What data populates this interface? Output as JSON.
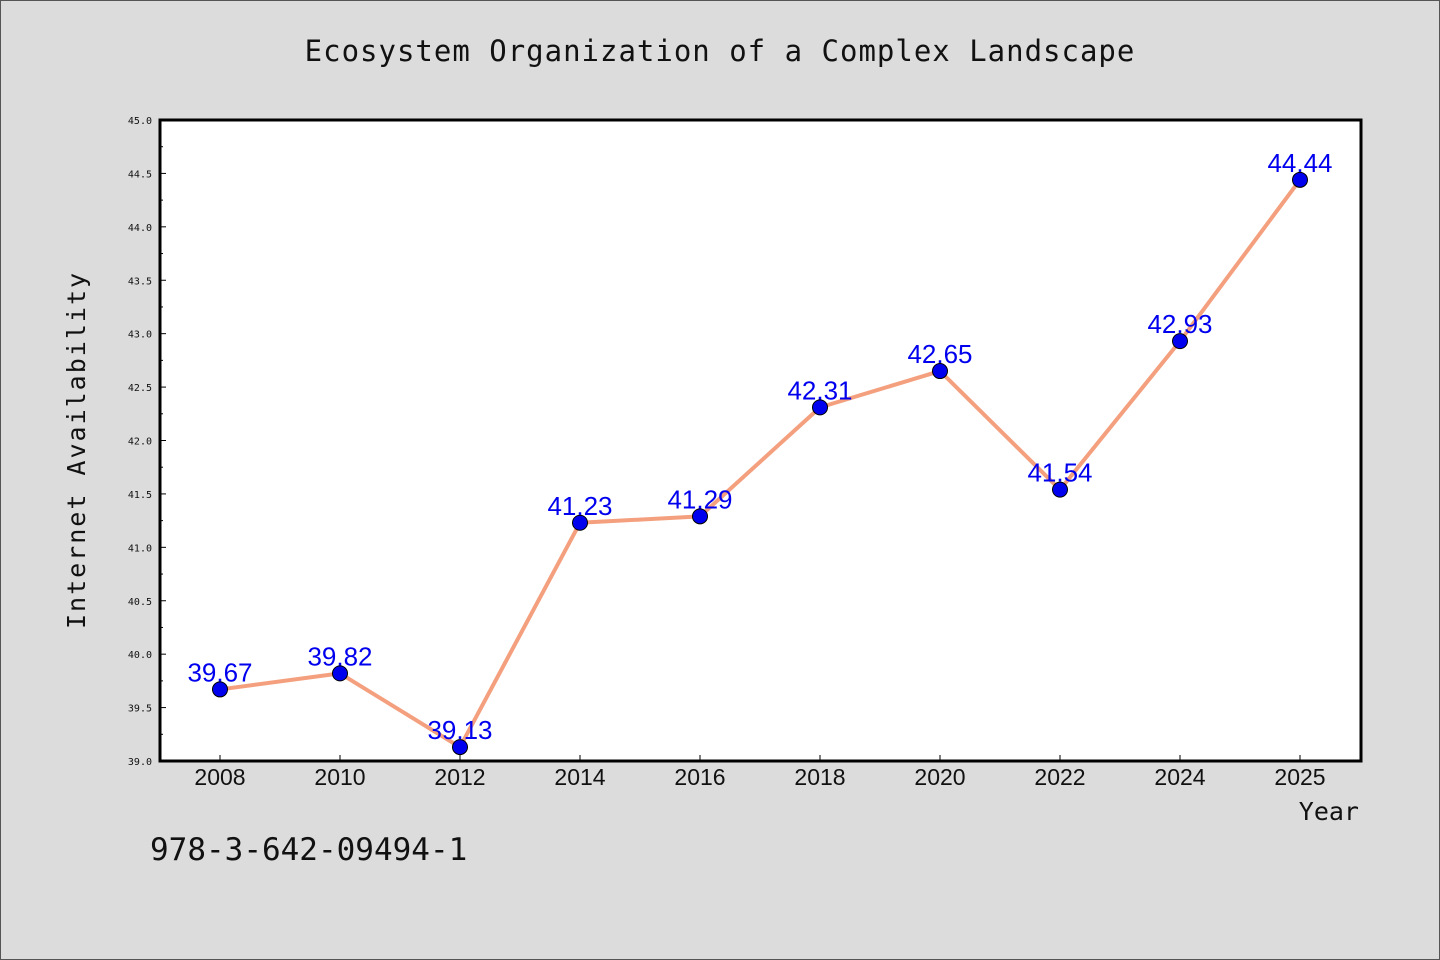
{
  "chart_data": {
    "type": "line",
    "title": "Ecosystem Organization of a Complex Landscape",
    "xlabel": "Year",
    "ylabel": "Internet Availability",
    "categories": [
      "2008",
      "2010",
      "2012",
      "2014",
      "2016",
      "2018",
      "2020",
      "2022",
      "2024",
      "2025"
    ],
    "series": [
      {
        "values": [
          39.67,
          39.82,
          39.13,
          41.23,
          41.29,
          42.31,
          42.65,
          41.54,
          42.93,
          44.44
        ],
        "data_labels": [
          "39.67",
          "39.82",
          "39.13",
          "41.23",
          "41.29",
          "42.31",
          "42.65",
          "41.54",
          "42.93",
          "44.44"
        ]
      }
    ],
    "ylim": [
      39.0,
      45.0
    ],
    "yticks": [
      "39.0",
      "39.5",
      "40.0",
      "40.5",
      "41.0",
      "41.5",
      "42.0",
      "42.5",
      "43.0",
      "43.5",
      "44.0",
      "44.5",
      "45.0"
    ],
    "grid": false,
    "colors": {
      "line": "#f4a07e",
      "marker": "#0000ee",
      "label": "#0000ee"
    }
  },
  "footer": {
    "code": "978-3-642-09494-1"
  }
}
